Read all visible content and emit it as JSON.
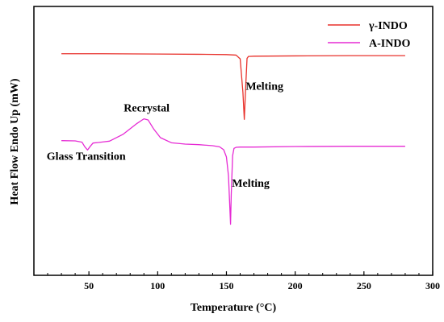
{
  "chart_data": {
    "type": "line",
    "xlabel": "Temperature (°C)",
    "ylabel": "Heat Flow Endo Up (mW)",
    "xlim": [
      10,
      300
    ],
    "ylim": [
      0,
      100
    ],
    "xticks": [
      50,
      100,
      150,
      200,
      250,
      300
    ],
    "xtick_labels": [
      "50",
      "100",
      "150",
      "200",
      "250",
      "300"
    ],
    "yticks_shown": false,
    "grid": false,
    "legend_position": "top-right",
    "series": [
      {
        "name": "γ-INDO",
        "color": "#e8312b",
        "x": [
          30,
          60,
          100,
          130,
          150,
          157,
          160,
          162,
          163,
          164,
          165,
          166,
          170,
          200,
          240,
          280
        ],
        "y": [
          82.4,
          82.4,
          82.3,
          82.2,
          82.1,
          81.9,
          80.5,
          68,
          58,
          70,
          80.7,
          81.4,
          81.5,
          81.6,
          81.7,
          81.7
        ]
      },
      {
        "name": "A-INDO",
        "color": "#e62ad4",
        "x": [
          30,
          40,
          45,
          47,
          49,
          51,
          53,
          57,
          65,
          75,
          85,
          90,
          93,
          97,
          102,
          110,
          120,
          130,
          140,
          145,
          148,
          150,
          151.5,
          152.5,
          153,
          153.5,
          154.5,
          155.5,
          157,
          160,
          170,
          200,
          240,
          280
        ],
        "y": [
          50.1,
          50,
          49.5,
          47.8,
          46.6,
          48,
          49.2,
          49.4,
          49.9,
          52.5,
          56.5,
          58.2,
          57.8,
          54.5,
          51.2,
          49.3,
          48.8,
          48.6,
          48.2,
          47.8,
          46.7,
          44,
          37,
          25,
          19,
          30,
          44.5,
          47.2,
          47.6,
          47.7,
          47.7,
          47.9,
          48.0,
          48.0
        ]
      }
    ],
    "annotations": [
      {
        "text": "Melting",
        "x": 164,
        "y": 69
      },
      {
        "text": "Recrystal",
        "x": 92,
        "y": 61
      },
      {
        "text": "Glass Transition",
        "x": 48,
        "y": 43
      },
      {
        "text": "Melting",
        "x": 154,
        "y": 33
      }
    ]
  }
}
